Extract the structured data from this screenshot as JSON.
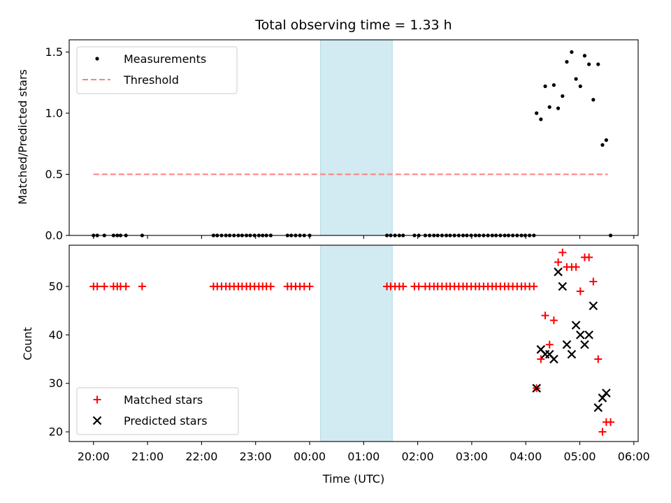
{
  "chart_data": {
    "title": "Total observing time = 1.33 h",
    "xlabel": "Time (UTC)",
    "x_ticks": [
      "20:00",
      "21:00",
      "22:00",
      "23:00",
      "00:00",
      "01:00",
      "02:00",
      "03:00",
      "04:00",
      "05:00",
      "06:00"
    ],
    "x_unit": "hours since 20:00 UTC",
    "xlim": [
      -0.45,
      10.08
    ],
    "highlight_span": [
      4.2,
      5.53
    ],
    "colors": {
      "measurements": "#000000",
      "threshold": "#ff7f7f",
      "matched": "#ff0000",
      "predicted": "#000000",
      "span": "#add8e6"
    },
    "panels": [
      {
        "type": "scatter",
        "ylabel": "Matched/Predicted stars",
        "ylim": [
          0,
          1.6
        ],
        "y_ticks": [
          "0.0",
          "0.5",
          "1.0",
          "1.5"
        ],
        "y_tick_values": [
          0,
          0.5,
          1.0,
          1.5
        ],
        "legend": {
          "position": "upper-left",
          "entries": [
            "Measurements",
            "Threshold"
          ]
        },
        "threshold": {
          "name": "Threshold",
          "value": 0.5,
          "x": [
            0.0,
            9.52
          ]
        },
        "series": [
          {
            "name": "Measurements",
            "marker": "dot",
            "x": [
              0.0,
              0.07,
              0.2,
              0.37,
              0.44,
              0.5,
              0.6,
              0.9,
              2.22,
              2.29,
              2.37,
              2.45,
              2.52,
              2.6,
              2.68,
              2.75,
              2.83,
              2.9,
              2.98,
              3.06,
              3.13,
              3.2,
              3.28,
              3.59,
              3.66,
              3.74,
              3.82,
              3.9,
              4.0,
              5.43,
              5.5,
              5.58,
              5.66,
              5.73,
              5.94,
              6.02,
              6.14,
              6.22,
              6.3,
              6.37,
              6.45,
              6.53,
              6.6,
              6.68,
              6.76,
              6.84,
              6.91,
              6.99,
              7.07,
              7.14,
              7.22,
              7.3,
              7.38,
              7.45,
              7.53,
              7.61,
              7.68,
              7.76,
              7.84,
              7.92,
              7.99,
              8.07,
              8.15,
              8.2,
              8.28,
              8.36,
              8.44,
              8.52,
              8.6,
              8.68,
              8.76,
              8.85,
              8.93,
              9.01,
              9.09,
              9.17,
              9.25,
              9.34,
              9.42,
              9.49,
              9.57
            ],
            "y": [
              0,
              0,
              0,
              0,
              0,
              0,
              0,
              0,
              0,
              0,
              0,
              0,
              0,
              0,
              0,
              0,
              0,
              0,
              0,
              0,
              0,
              0,
              0,
              0,
              0,
              0,
              0,
              0,
              0,
              0,
              0,
              0,
              0,
              0,
              0,
              0,
              0,
              0,
              0,
              0,
              0,
              0,
              0,
              0,
              0,
              0,
              0,
              0,
              0,
              0,
              0,
              0,
              0,
              0,
              0,
              0,
              0,
              0,
              0,
              0,
              0,
              0,
              0,
              1.0,
              0.95,
              1.22,
              1.05,
              1.23,
              1.04,
              1.14,
              1.42,
              1.5,
              1.28,
              1.22,
              1.47,
              1.4,
              1.11,
              1.4,
              0.74,
              0.78,
              0.0
            ]
          }
        ]
      },
      {
        "type": "scatter",
        "ylabel": "Count",
        "ylim": [
          18,
          58.5
        ],
        "y_ticks": [
          "20",
          "30",
          "40",
          "50"
        ],
        "y_tick_values": [
          20,
          30,
          40,
          50
        ],
        "legend": {
          "position": "lower-left",
          "entries": [
            "Matched stars",
            "Predicted stars"
          ]
        },
        "series": [
          {
            "name": "Matched stars",
            "marker": "plus",
            "x": [
              0.0,
              0.07,
              0.2,
              0.37,
              0.44,
              0.5,
              0.6,
              0.9,
              2.22,
              2.29,
              2.37,
              2.45,
              2.52,
              2.6,
              2.68,
              2.75,
              2.83,
              2.9,
              2.98,
              3.06,
              3.13,
              3.2,
              3.28,
              3.59,
              3.66,
              3.74,
              3.82,
              3.9,
              4.0,
              5.43,
              5.5,
              5.58,
              5.66,
              5.73,
              5.94,
              6.02,
              6.14,
              6.22,
              6.3,
              6.37,
              6.45,
              6.53,
              6.6,
              6.68,
              6.76,
              6.84,
              6.91,
              6.99,
              7.07,
              7.14,
              7.22,
              7.3,
              7.38,
              7.45,
              7.53,
              7.61,
              7.68,
              7.76,
              7.84,
              7.92,
              7.99,
              8.07,
              8.15,
              8.2,
              8.28,
              8.36,
              8.44,
              8.52,
              8.6,
              8.68,
              8.76,
              8.85,
              8.93,
              9.01,
              9.09,
              9.17,
              9.25,
              9.34,
              9.42,
              9.49,
              9.57
            ],
            "y": [
              50,
              50,
              50,
              50,
              50,
              50,
              50,
              50,
              50,
              50,
              50,
              50,
              50,
              50,
              50,
              50,
              50,
              50,
              50,
              50,
              50,
              50,
              50,
              50,
              50,
              50,
              50,
              50,
              50,
              50,
              50,
              50,
              50,
              50,
              50,
              50,
              50,
              50,
              50,
              50,
              50,
              50,
              50,
              50,
              50,
              50,
              50,
              50,
              50,
              50,
              50,
              50,
              50,
              50,
              50,
              50,
              50,
              50,
              50,
              50,
              50,
              50,
              50,
              29,
              35,
              44,
              38,
              43,
              55,
              57,
              54,
              54,
              54,
              49,
              56,
              56,
              51,
              35,
              20,
              22,
              22
            ]
          },
          {
            "name": "Predicted stars",
            "marker": "x",
            "x": [
              8.2,
              8.28,
              8.36,
              8.44,
              8.52,
              8.6,
              8.68,
              8.76,
              8.85,
              8.93,
              9.01,
              9.09,
              9.17,
              9.25,
              9.34,
              9.42,
              9.49
            ],
            "y": [
              29,
              37,
              36,
              36,
              35,
              53,
              50,
              38,
              36,
              42,
              40,
              38,
              40,
              46,
              25,
              27,
              28
            ]
          }
        ]
      }
    ]
  }
}
